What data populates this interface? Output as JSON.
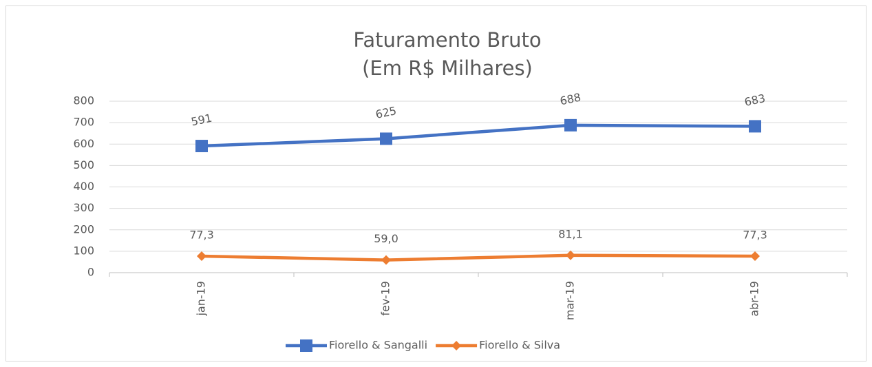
{
  "chart_data": {
    "type": "line",
    "title": "Faturamento Bruto",
    "subtitle": "(Em R$ Milhares)",
    "categories": [
      "jan-19",
      "fev-19",
      "mar-19",
      "abr-19"
    ],
    "series": [
      {
        "name": "Fiorello & Sangalli",
        "color": "#4472c4",
        "marker": "square",
        "values": [
          591,
          625,
          688,
          683
        ]
      },
      {
        "name": "Fiorello & Silva",
        "color": "#ed7d31",
        "marker": "diamond",
        "values": [
          77.3,
          59.0,
          81.1,
          77.3
        ],
        "value_labels": [
          "77,3",
          "59,0",
          "81,1",
          "77,3"
        ]
      }
    ],
    "ylim": [
      0,
      800
    ],
    "yticks": [
      0,
      100,
      200,
      300,
      400,
      500,
      600,
      700,
      800
    ],
    "grid": true,
    "legend": "bottom"
  }
}
